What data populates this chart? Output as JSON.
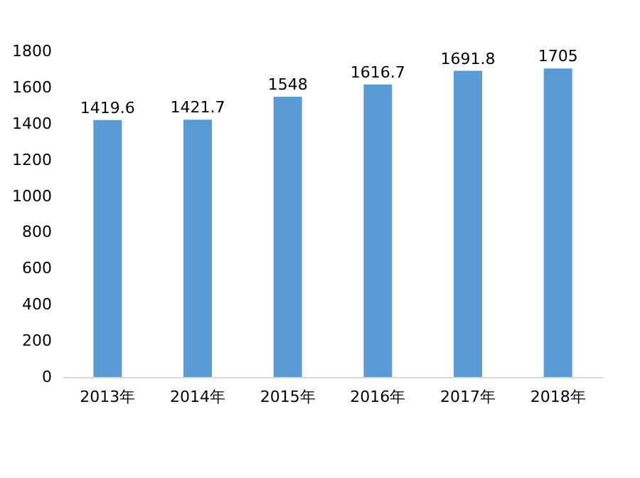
{
  "chart_data": {
    "type": "bar",
    "categories": [
      "2013年",
      "2014年",
      "2015年",
      "2016年",
      "2017年",
      "2018年"
    ],
    "values": [
      1419.6,
      1421.7,
      1548,
      1616.7,
      1691.8,
      1705
    ],
    "color": "#5b9bd5",
    "ylim": [
      0,
      1800
    ],
    "yticks": [
      0,
      200,
      400,
      600,
      800,
      1000,
      1200,
      1400,
      1600,
      1800
    ],
    "data_labels": true,
    "grid": false
  }
}
